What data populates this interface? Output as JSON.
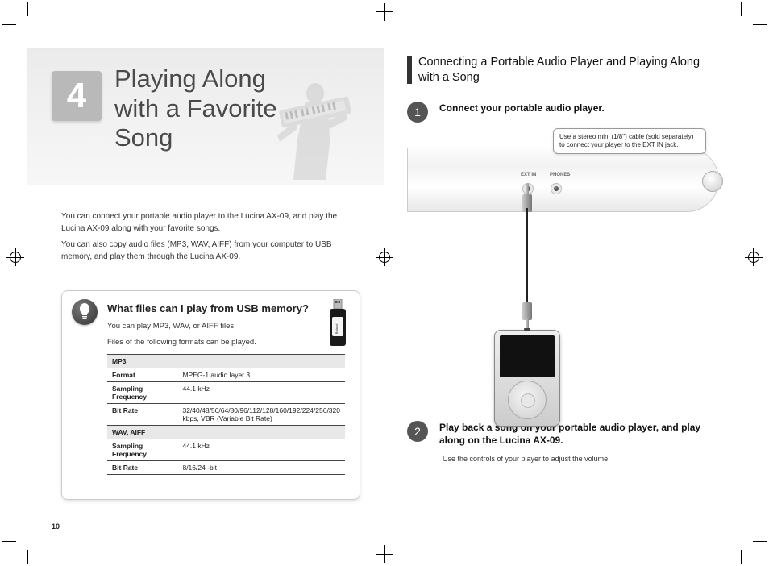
{
  "chapter": {
    "number": "4",
    "title": "Playing Along with a Favorite Song"
  },
  "intro": {
    "p1": "You can connect your portable audio player to the Lucina AX-09, and play the Lucina AX-09 along with your favorite songs.",
    "p2": "You can also copy audio files (MP3, WAV, AIFF) from your computer to USB memory, and play them through the Lucina AX-09."
  },
  "info_box": {
    "title": "What files can I play from USB memory?",
    "line1": "You can play MP3, WAV, or AIFF files.",
    "line2": "Files of the following formats can be played.",
    "usb_label": "Roland",
    "table": {
      "sections": [
        {
          "header": "MP3",
          "rows": [
            {
              "label": "Format",
              "value": "MPEG-1 audio layer 3"
            },
            {
              "label": "Sampling Frequency",
              "value": "44.1 kHz"
            },
            {
              "label": "Bit Rate",
              "value": "32/40/48/56/64/80/96/112/128/160/192/224/256/320 kbps, VBR (Variable Bit Rate)"
            }
          ]
        },
        {
          "header": "WAV, AIFF",
          "rows": [
            {
              "label": "Sampling Frequency",
              "value": "44.1 kHz"
            },
            {
              "label": "Bit Rate",
              "value": "8/16/24 -bit"
            }
          ]
        }
      ]
    }
  },
  "page_number": "10",
  "right": {
    "heading": "Connecting a Portable Audio Player and Playing Along with a Song",
    "step1": {
      "num": "1",
      "text": "Connect your portable audio player.",
      "callout": "Use a stereo mini (1/8\") cable (sold separately) to connect your player to the EXT IN jack.",
      "jack_extin": "EXT IN",
      "jack_phones": "PHONES"
    },
    "step2": {
      "num": "2",
      "text": "Play back a song on your portable audio player, and play along on the Lucina AX-09.",
      "note": "Use the controls of your player to adjust the volume."
    }
  },
  "colors": {
    "banner_bg": "#ebebeb",
    "chapter_box": "#b9b9b9",
    "step_circle": "#555555",
    "heading_bar": "#333333",
    "table_section_bg": "#e8e8e8"
  }
}
